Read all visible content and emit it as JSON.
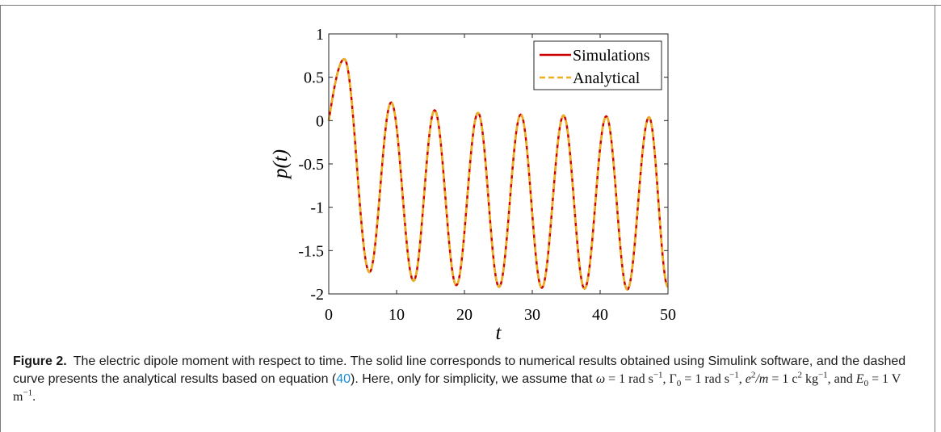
{
  "chart_data": {
    "type": "line",
    "xlabel": "t",
    "ylabel": "p(t)",
    "xlim": [
      0,
      50
    ],
    "ylim": [
      -2,
      1
    ],
    "x_ticks": [
      "0",
      "10",
      "20",
      "30",
      "40",
      "50"
    ],
    "y_ticks": [
      "1",
      "0.5",
      "0",
      "-0.5",
      "-1",
      "-1.5",
      "-2"
    ],
    "grid": false,
    "legend_position": "top-right",
    "series": [
      {
        "name": "Simulations",
        "style": "solid",
        "color": "#cc0000",
        "x": [
          0,
          2.3,
          6.0,
          9.2,
          12.5,
          15.6,
          18.8,
          22.0,
          25.1,
          28.3,
          31.4,
          34.6,
          37.7,
          40.9,
          44.0,
          47.2,
          50
        ],
        "y": [
          0,
          0.71,
          -1.75,
          0.21,
          -1.85,
          0.12,
          -1.9,
          0.09,
          -1.92,
          0.07,
          -1.93,
          0.06,
          -1.94,
          0.05,
          -1.95,
          0.04,
          -1.92
        ]
      },
      {
        "name": "Analytical",
        "style": "dashed",
        "color": "#edb120",
        "x": [
          0,
          2.3,
          6.0,
          9.2,
          12.5,
          15.6,
          18.8,
          22.0,
          25.1,
          28.3,
          31.4,
          34.6,
          37.7,
          40.9,
          44.0,
          47.2,
          50
        ],
        "y": [
          0,
          0.71,
          -1.75,
          0.21,
          -1.85,
          0.12,
          -1.9,
          0.09,
          -1.92,
          0.07,
          -1.93,
          0.06,
          -1.94,
          0.05,
          -1.95,
          0.04,
          -1.92
        ]
      }
    ]
  },
  "caption": {
    "label": "Figure 2.",
    "text_1": "The electric dipole moment with respect to time. The solid line corresponds to numerical results obtained using Simulink software, and the dashed curve presents the analytical results based on equation (",
    "ref": "40",
    "text_2": "). Here, only for simplicity, we assume that",
    "omega": "ω",
    "eq": " = ",
    "unit_rad": "1 rad s",
    "gamma0": "Γ",
    "sub0": "0",
    "e": "e",
    "two": "2",
    "slash_m": "/m",
    "unit_ckg_1": "1 c",
    "unit_ckg_2": " kg",
    "E": "E",
    "unit_V": "1 V m",
    "minus_one": "−1",
    "comma": ", ",
    "and": ", and ",
    "period": "."
  }
}
